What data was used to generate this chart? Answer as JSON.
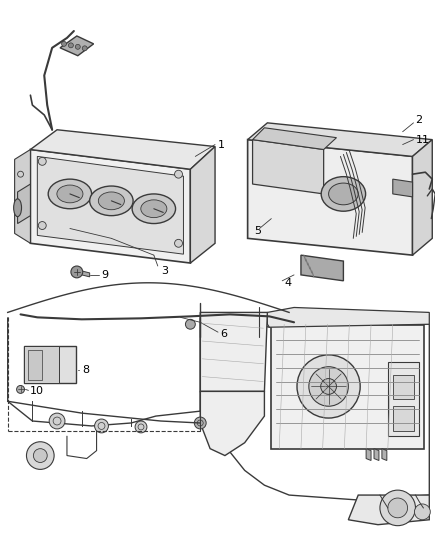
{
  "background_color": "#ffffff",
  "line_color": "#3a3a3a",
  "text_color": "#000000",
  "fig_width": 4.38,
  "fig_height": 5.33,
  "dpi": 100
}
